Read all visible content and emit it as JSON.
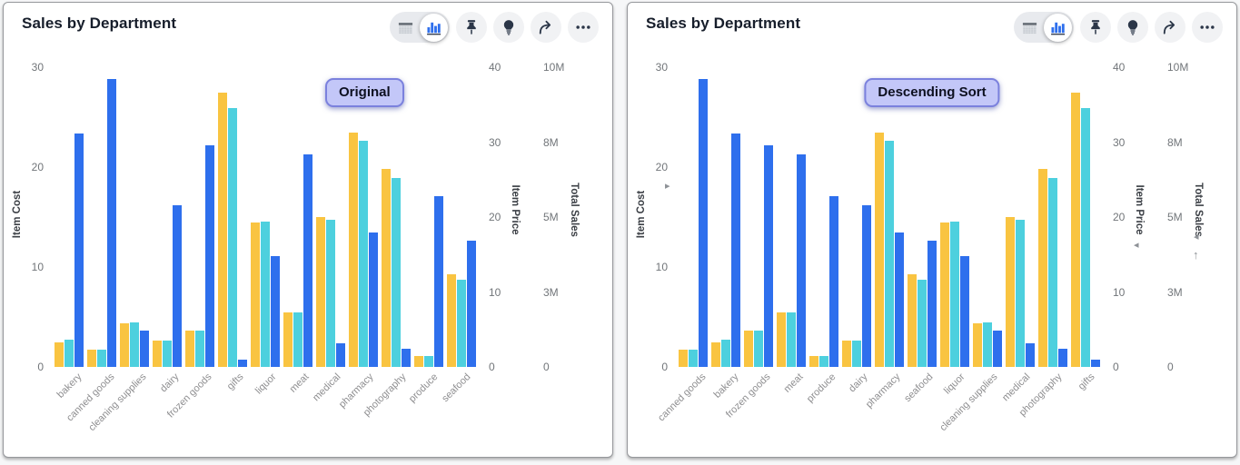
{
  "colors": {
    "yellow": "#F9C441",
    "cyan": "#4DD0DE",
    "blue": "#2E6FED",
    "icon": "#2B3648",
    "badge_bg": "#C3C7F8",
    "badge_border": "#7B81DD"
  },
  "toolbar": {
    "toggle": [
      {
        "icon": "table-icon",
        "selected": false
      },
      {
        "icon": "bar-chart-icon",
        "selected": true
      }
    ],
    "buttons": [
      {
        "icon": "pin-icon",
        "name": "pin-button"
      },
      {
        "icon": "lightbulb-icon",
        "name": "insights-button"
      },
      {
        "icon": "share-icon",
        "name": "share-button"
      },
      {
        "icon": "more-icon",
        "name": "more-options-button"
      }
    ]
  },
  "chart_data": [
    {
      "type": "bar",
      "title": "Sales by Department",
      "annotation": "Original",
      "legend": "none",
      "grid": false,
      "categories": [
        "bakery",
        "canned goods",
        "cleaning supplies",
        "dairy",
        "frozen goods",
        "gifts",
        "liquor",
        "meat",
        "medical",
        "pharmacy",
        "photography",
        "produce",
        "seafood"
      ],
      "series": [
        {
          "name": "Item Cost",
          "color_key": "yellow",
          "axis": "left",
          "axis_max": 30,
          "values": [
            2.5,
            1.7,
            4.4,
            2.6,
            3.6,
            27.5,
            14.5,
            5.5,
            15.0,
            23.5,
            19.8,
            1.1,
            9.3
          ]
        },
        {
          "name": "Item Price",
          "color_key": "cyan",
          "axis": "price",
          "axis_max": 40,
          "values": [
            3.7,
            2.3,
            6.0,
            3.5,
            4.8,
            34.5,
            19.4,
            7.3,
            19.6,
            30.2,
            25.2,
            1.5,
            11.7
          ]
        },
        {
          "name": "Total Sales",
          "color_key": "blue",
          "axis": "sales",
          "axis_max": 10,
          "unit": "M",
          "values": [
            7.8,
            9.6,
            1.2,
            5.4,
            7.4,
            0.25,
            3.7,
            7.1,
            0.8,
            4.5,
            0.6,
            5.7,
            4.2
          ]
        }
      ],
      "axes": {
        "left": {
          "label": "Item Cost",
          "max": 30,
          "ticks": [
            {
              "label": "30",
              "value": 30
            },
            {
              "label": "20",
              "value": 20
            },
            {
              "label": "10",
              "value": 10
            },
            {
              "label": "0",
              "value": 0
            }
          ]
        },
        "price": {
          "label": "Item Price",
          "max": 40,
          "ticks": [
            {
              "label": "40",
              "value": 40
            },
            {
              "label": "30",
              "value": 30
            },
            {
              "label": "20",
              "value": 20
            },
            {
              "label": "10",
              "value": 10
            },
            {
              "label": "0",
              "value": 0
            }
          ]
        },
        "sales": {
          "label": "Total Sales",
          "max": 10,
          "ticks": [
            {
              "label": "10M",
              "value": 10
            },
            {
              "label": "8M",
              "value": 7.5
            },
            {
              "label": "5M",
              "value": 5
            },
            {
              "label": "3M",
              "value": 2.5
            },
            {
              "label": "0",
              "value": 0
            }
          ]
        }
      },
      "sort_indicators": []
    },
    {
      "type": "bar",
      "title": "Sales by Department",
      "annotation": "Descending Sort",
      "legend": "none",
      "grid": false,
      "sorted_by": "Total Sales descending",
      "categories": [
        "canned goods",
        "bakery",
        "frozen goods",
        "meat",
        "produce",
        "dairy",
        "pharmacy",
        "seafood",
        "liquor",
        "cleaning supplies",
        "medical",
        "photography",
        "gifts"
      ],
      "series": [
        {
          "name": "Item Cost",
          "color_key": "yellow",
          "axis": "left",
          "axis_max": 30,
          "values": [
            1.7,
            2.5,
            3.6,
            5.5,
            1.1,
            2.6,
            23.5,
            9.3,
            14.5,
            4.4,
            15.0,
            19.8,
            27.5
          ]
        },
        {
          "name": "Item Price",
          "color_key": "cyan",
          "axis": "price",
          "axis_max": 40,
          "values": [
            2.3,
            3.7,
            4.8,
            7.3,
            1.5,
            3.5,
            30.2,
            11.7,
            19.4,
            6.0,
            19.6,
            25.2,
            34.5
          ]
        },
        {
          "name": "Total Sales",
          "color_key": "blue",
          "axis": "sales",
          "axis_max": 10,
          "unit": "M",
          "values": [
            9.6,
            7.8,
            7.4,
            7.1,
            5.7,
            5.4,
            4.5,
            4.2,
            3.7,
            1.2,
            0.8,
            0.6,
            0.25
          ]
        }
      ],
      "axes": {
        "left": {
          "label": "Item Cost",
          "max": 30,
          "ticks": [
            {
              "label": "30",
              "value": 30
            },
            {
              "label": "20",
              "value": 20
            },
            {
              "label": "10",
              "value": 10
            },
            {
              "label": "0",
              "value": 0
            }
          ]
        },
        "price": {
          "label": "Item Price",
          "max": 40,
          "ticks": [
            {
              "label": "40",
              "value": 40
            },
            {
              "label": "30",
              "value": 30
            },
            {
              "label": "20",
              "value": 20
            },
            {
              "label": "10",
              "value": 10
            },
            {
              "label": "0",
              "value": 0
            }
          ]
        },
        "sales": {
          "label": "Total Sales",
          "max": 10,
          "ticks": [
            {
              "label": "10M",
              "value": 10
            },
            {
              "label": "8M",
              "value": 7.5
            },
            {
              "label": "5M",
              "value": 5
            },
            {
              "label": "3M",
              "value": 2.5
            },
            {
              "label": "0",
              "value": 0
            }
          ]
        }
      },
      "sort_indicators": [
        {
          "axis": "item-cost",
          "glyph": "▸",
          "pos": "cost"
        },
        {
          "axis": "item-price",
          "glyph": "◂",
          "pos": "price"
        },
        {
          "axis": "total-sales",
          "glyph": "◂",
          "pos": "sales-1"
        },
        {
          "axis": "total-sales-direction",
          "glyph": "↑",
          "pos": "sales-2"
        }
      ]
    }
  ]
}
